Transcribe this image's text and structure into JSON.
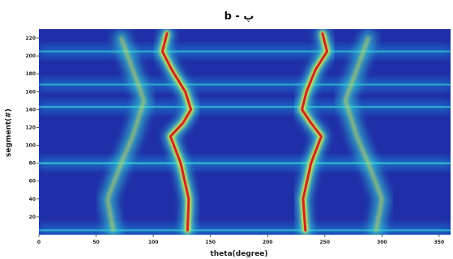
{
  "chart_data": {
    "type": "heatmap",
    "title": "b - پ",
    "xlabel": "theta(degree)",
    "ylabel": "segment(#)",
    "xlim": [
      0,
      360
    ],
    "ylim": [
      0,
      230
    ],
    "x_ticks": [
      0,
      50,
      100,
      150,
      200,
      250,
      300,
      350
    ],
    "y_ticks": [
      20,
      40,
      60,
      80,
      100,
      120,
      140,
      160,
      180,
      200,
      220
    ],
    "x_tick_labels": [
      "0",
      "50",
      "100",
      "150",
      "200",
      "250",
      "300",
      "350"
    ],
    "y_tick_labels": [
      "20",
      "40",
      "60",
      "80",
      "100",
      "120",
      "140",
      "160",
      "180",
      "200",
      "220"
    ],
    "colormap": "jet",
    "colors": {
      "background_low": "#1f2fa8",
      "mid": "#1a8fd8",
      "cyan": "#39e0d8",
      "yellow": "#f5e53a",
      "high": "#c81e1e"
    },
    "ridges": [
      {
        "description": "left primary ridge",
        "points": [
          [
            130,
            5
          ],
          [
            131,
            40
          ],
          [
            124,
            80
          ],
          [
            115,
            110
          ],
          [
            126,
            125
          ],
          [
            133,
            140
          ],
          [
            128,
            160
          ],
          [
            116,
            185
          ],
          [
            108,
            205
          ],
          [
            112,
            225
          ]
        ]
      },
      {
        "description": "right primary ridge",
        "points": [
          [
            233,
            5
          ],
          [
            231,
            40
          ],
          [
            238,
            80
          ],
          [
            247,
            110
          ],
          [
            238,
            125
          ],
          [
            230,
            140
          ],
          [
            234,
            160
          ],
          [
            242,
            185
          ],
          [
            252,
            205
          ],
          [
            248,
            225
          ]
        ]
      },
      {
        "description": "left secondary ridge",
        "points": [
          [
            65,
            5
          ],
          [
            60,
            40
          ],
          [
            72,
            80
          ],
          [
            82,
            110
          ],
          [
            92,
            150
          ],
          [
            82,
            185
          ],
          [
            72,
            220
          ]
        ]
      },
      {
        "description": "right secondary ridge",
        "points": [
          [
            295,
            5
          ],
          [
            300,
            40
          ],
          [
            288,
            80
          ],
          [
            278,
            110
          ],
          [
            268,
            150
          ],
          [
            278,
            185
          ],
          [
            288,
            220
          ]
        ]
      }
    ],
    "horizontal_bands": [
      {
        "segment": 80,
        "strength": 0.75
      },
      {
        "segment": 143,
        "strength": 0.55
      },
      {
        "segment": 168,
        "strength": 0.45
      },
      {
        "segment": 205,
        "strength": 0.5
      },
      {
        "segment": 5,
        "strength": 0.6
      }
    ]
  }
}
